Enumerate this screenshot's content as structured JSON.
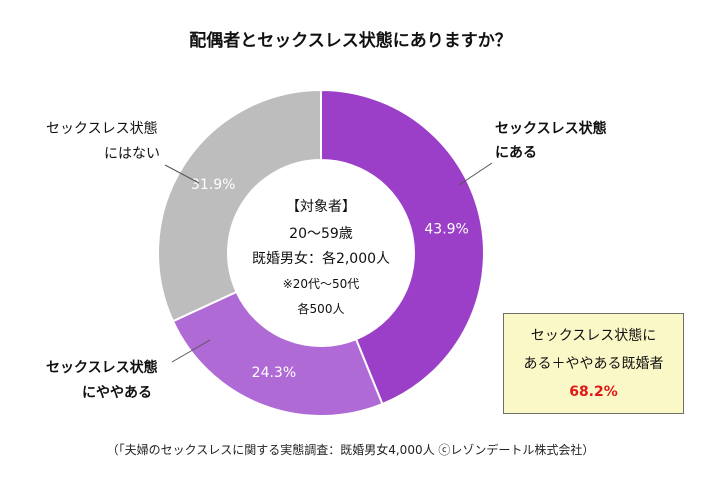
{
  "chart_data": {
    "type": "pie",
    "title": "配偶者とセックスレス状態にありますか？",
    "slices": [
      {
        "label_lines": [
          "セックスレス状態",
          "にある"
        ],
        "value": 43.9,
        "value_label": "43.9%",
        "color": "#9b3fc8",
        "label_bold": true
      },
      {
        "label_lines": [
          "セックスレス状態",
          "にややある"
        ],
        "value": 24.3,
        "value_label": "24.3%",
        "color": "#b06ad6",
        "label_bold": true
      },
      {
        "label_lines": [
          "セックスレス状態",
          "にはない"
        ],
        "value": 31.9,
        "value_label": "31.9%",
        "color": "#bdbdbd",
        "label_bold": false
      }
    ],
    "center_text": [
      "【対象者】",
      "20〜59歳",
      "既婚男女：各2,000人",
      "※20代〜50代",
      "各500人"
    ]
  },
  "callout": {
    "line1": "セックスレス状態に",
    "line2": "ある＋ややある既婚者",
    "value": "68.2%"
  },
  "source": "（「夫婦のセックスレスに関する実態調査：既婚男女4,000人 ⓒレゾンデートル株式会社）"
}
